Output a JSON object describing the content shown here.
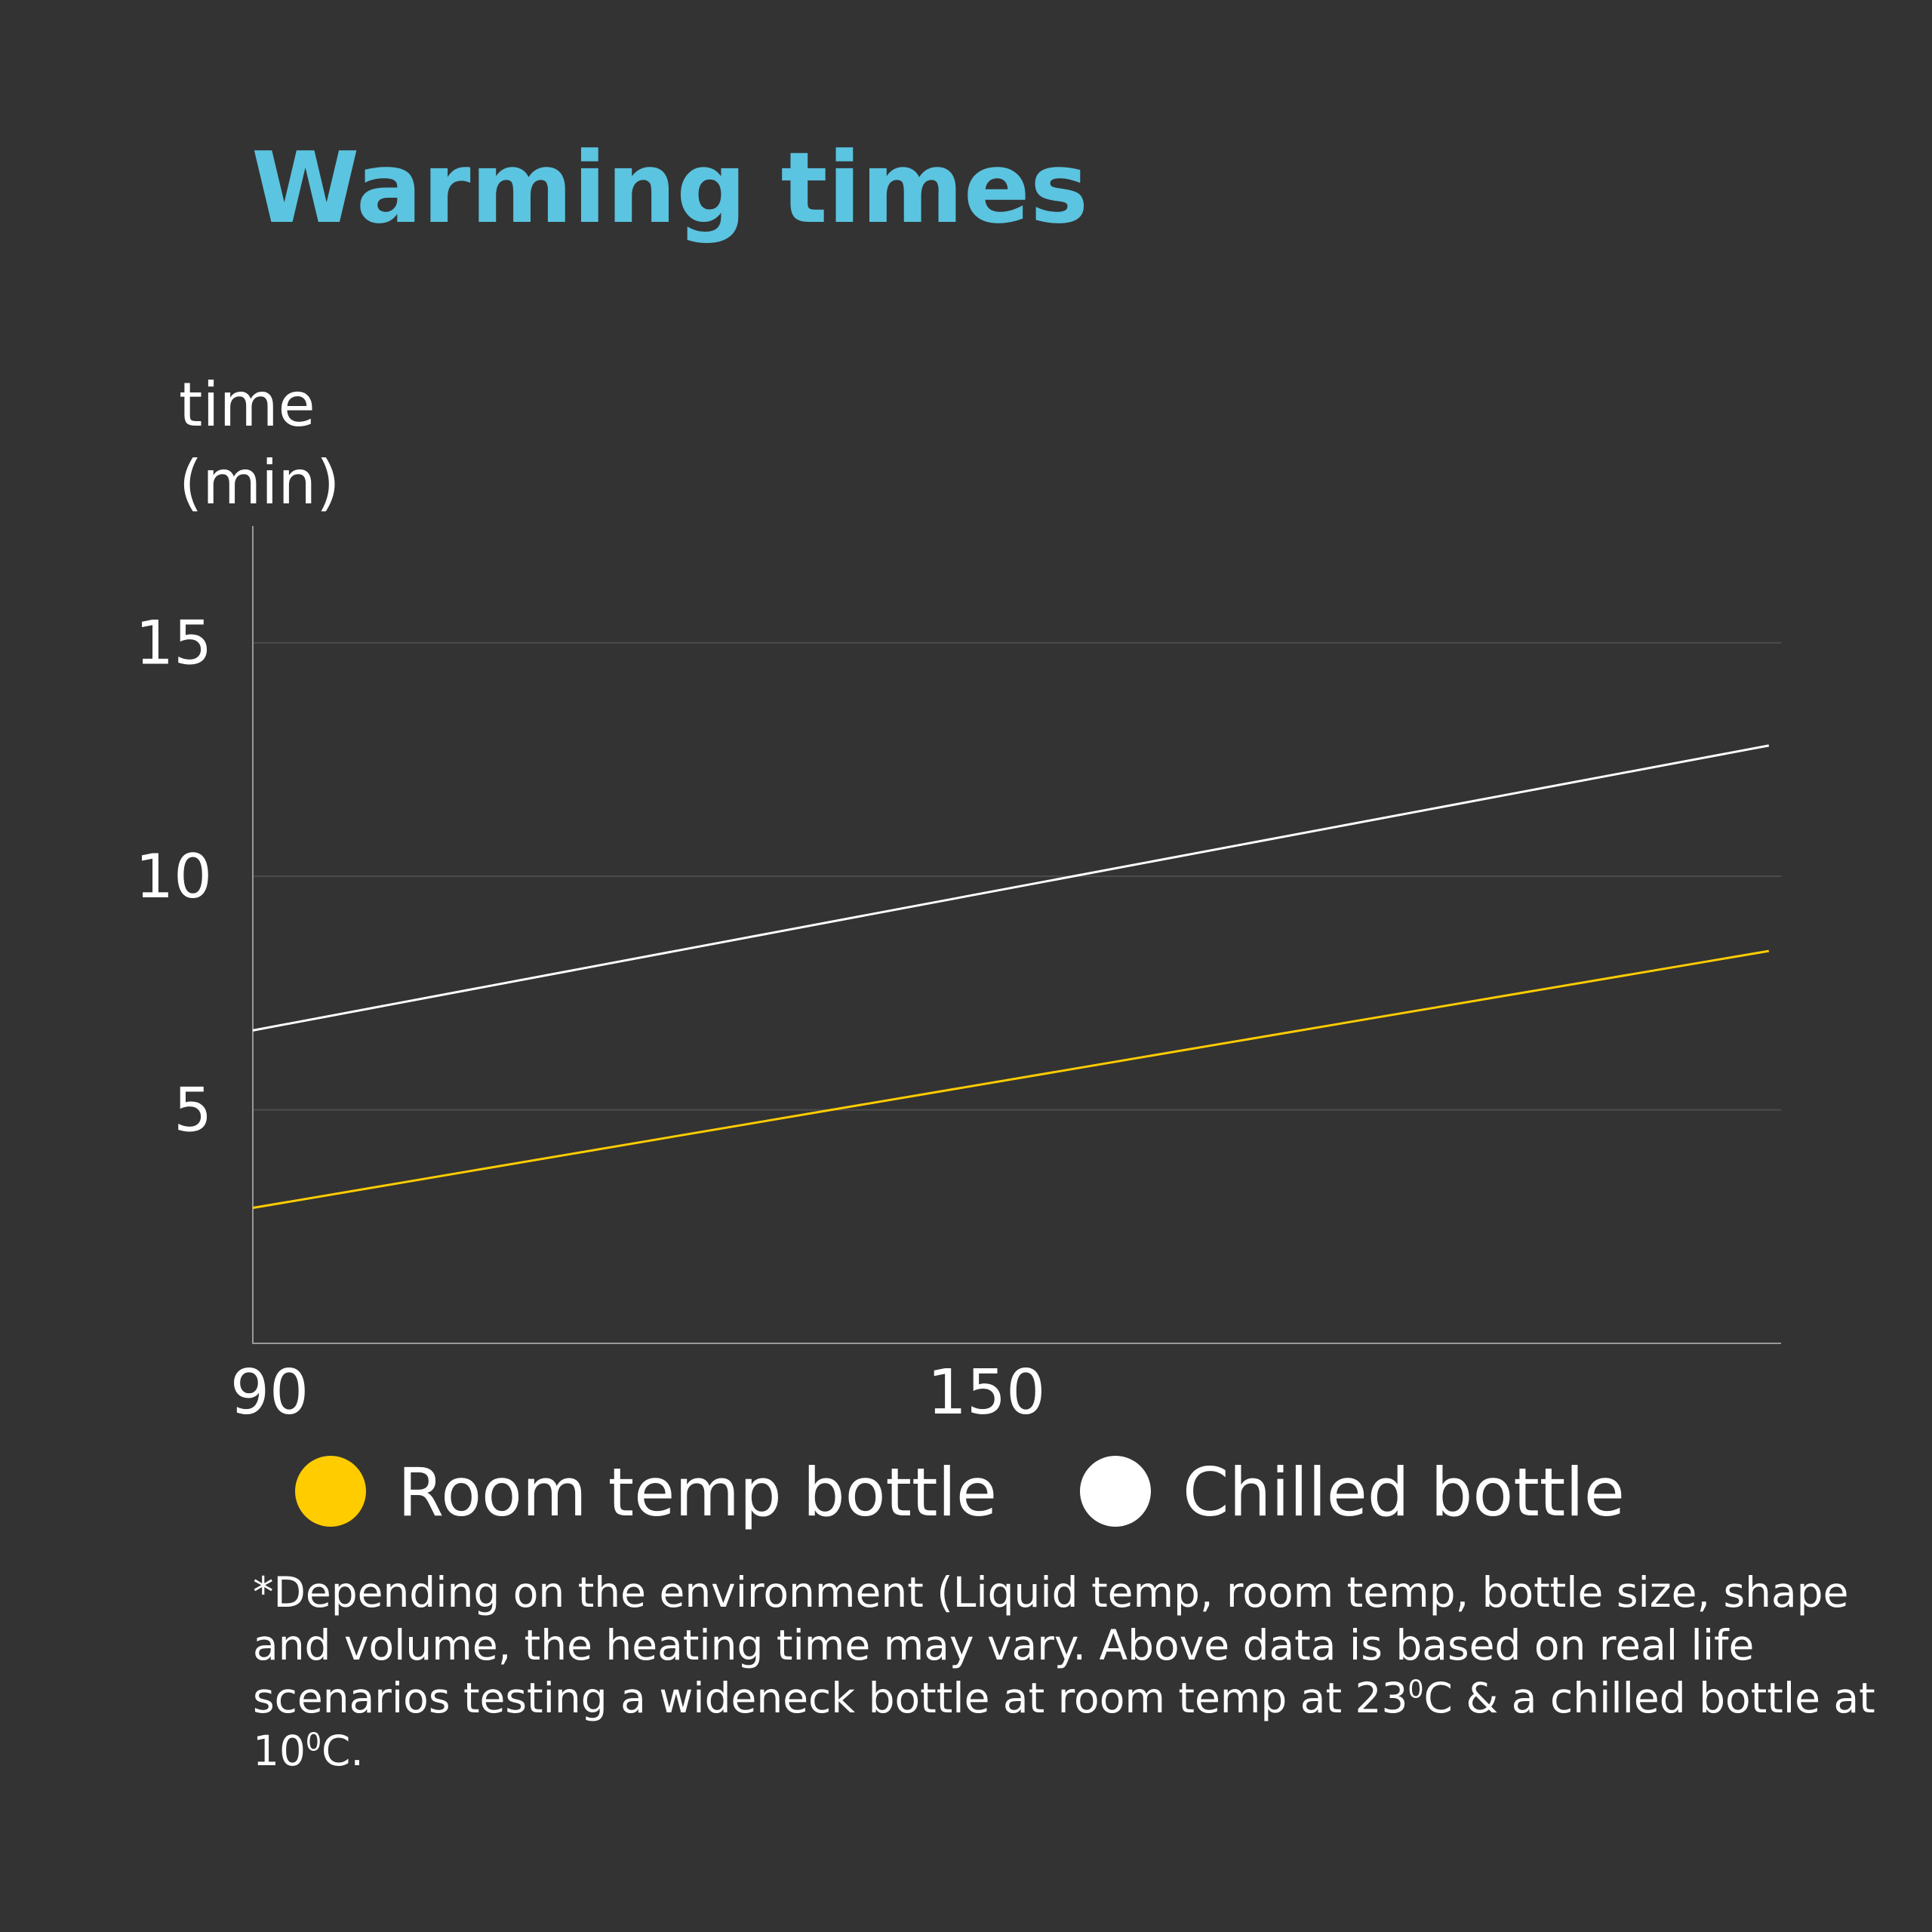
{
  "chart_data": {
    "type": "line",
    "title": "Warming times",
    "y_label_lines": [
      "time",
      "(min)"
    ],
    "x": [
      90,
      214
    ],
    "xlim": [
      90,
      215
    ],
    "xticks": [
      90,
      150
    ],
    "ylim": [
      0,
      17.5
    ],
    "yticks": [
      5,
      10,
      15
    ],
    "grid": true,
    "series": [
      {
        "name": "Room temp bottle",
        "color": "#ffcc00",
        "values": [
          2.9,
          8.4
        ]
      },
      {
        "name": "Chilled bottle",
        "color": "#ffffff",
        "values": [
          6.7,
          12.8
        ]
      }
    ],
    "footnote": [
      "*Depending on the environment (Liquid temp, room temp, bottle size, shape and volume, the heating time may vary. Above data is based on real life scenarios testing a wideneck bottle at room  temp at 23",
      "0",
      "C & a chilled bottle at 10",
      "0",
      "C."
    ]
  }
}
